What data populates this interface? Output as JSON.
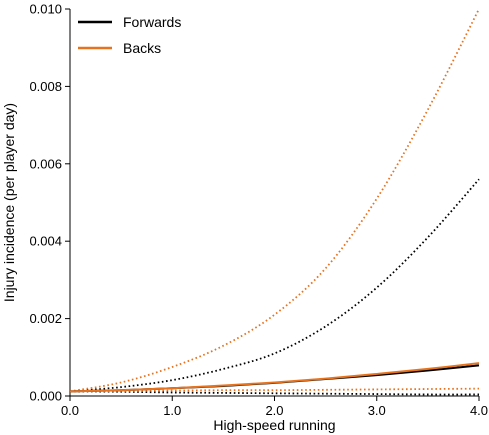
{
  "chart_data": {
    "type": "line",
    "xlabel": "High-speed running",
    "ylabel": "Injury incidence (per player day)",
    "xlim": [
      0,
      4
    ],
    "ylim": [
      0,
      0.01
    ],
    "x_ticks": [
      0,
      1,
      2,
      3,
      4
    ],
    "x_tick_labels": [
      "0.0",
      "1.0",
      "2.0",
      "3.0",
      "4.0"
    ],
    "y_ticks": [
      0,
      0.002,
      0.004,
      0.006,
      0.008,
      0.01
    ],
    "y_tick_labels": [
      "0.000",
      "0.002",
      "0.004",
      "0.006",
      "0.008",
      "0.010"
    ],
    "grid": false,
    "legend_position": "top-left",
    "legend": [
      {
        "label": "Forwards",
        "color": "#000000"
      },
      {
        "label": "Backs",
        "color": "#e8731e"
      }
    ],
    "x": [
      0,
      0.5,
      1,
      1.5,
      2,
      2.5,
      3,
      3.5,
      4
    ],
    "series": [
      {
        "name": "Forwards",
        "style": "solid",
        "color": "#000000",
        "values": [
          0.00012,
          0.00015,
          0.0002,
          0.00026,
          0.00034,
          0.00044,
          0.00054,
          0.00066,
          0.00079
        ]
      },
      {
        "name": "Backs",
        "style": "solid",
        "color": "#e8731e",
        "values": [
          0.00012,
          0.00015,
          0.0002,
          0.00027,
          0.00035,
          0.00045,
          0.00057,
          0.0007,
          0.00085
        ]
      },
      {
        "style": "dotted",
        "color": "#000000",
        "values": [
          0.00012,
          0.00023,
          0.00041,
          0.0007,
          0.0011,
          0.0018,
          0.0028,
          0.0041,
          0.0056
        ]
      },
      {
        "style": "dotted",
        "color": "#e8731e",
        "values": [
          0.00012,
          0.00035,
          0.00075,
          0.0013,
          0.0021,
          0.0033,
          0.0051,
          0.0074,
          0.01
        ]
      },
      {
        "style": "dotted",
        "color": "#000000",
        "values": [
          0.00012,
          0.00011,
          9e-05,
          8e-05,
          7e-05,
          6e-05,
          5e-05,
          4e-05,
          4e-05
        ]
      },
      {
        "style": "dotted",
        "color": "#e8731e",
        "values": [
          0.00012,
          0.00013,
          0.00014,
          0.00015,
          0.00015,
          0.00016,
          0.00017,
          0.00018,
          0.00019
        ]
      }
    ]
  }
}
